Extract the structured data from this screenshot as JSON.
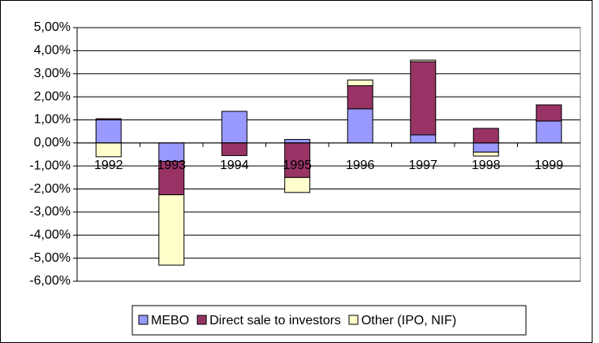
{
  "chart_data": {
    "type": "bar",
    "stacked": true,
    "grid": true,
    "legend": "bottom",
    "categories": [
      "1992",
      "1993",
      "1994",
      "1995",
      "1996",
      "1997",
      "1998",
      "1999"
    ],
    "series": [
      {
        "name": "MEBO",
        "color": "#9999ff",
        "values": [
          1.0,
          -0.8,
          1.37,
          0.15,
          1.48,
          0.35,
          -0.4,
          0.95
        ]
      },
      {
        "name": "Direct sale to investors",
        "color": "#993366",
        "values": [
          0.05,
          -1.45,
          -0.55,
          -1.5,
          1.0,
          3.17,
          0.63,
          0.7
        ]
      },
      {
        "name": "Other (IPO, NIF)",
        "color": "#ffffcc",
        "values": [
          -0.6,
          -3.05,
          0,
          -0.65,
          0.25,
          0.07,
          -0.17,
          0
        ]
      }
    ],
    "ylim": [
      -6,
      5
    ],
    "yticks": [
      {
        "value": -6,
        "label": "-6,00%"
      },
      {
        "value": -5,
        "label": "-5,00%"
      },
      {
        "value": -4,
        "label": "-4,00%"
      },
      {
        "value": -3,
        "label": "-3,00%"
      },
      {
        "value": -2,
        "label": "-2,00%"
      },
      {
        "value": -1,
        "label": "-1,00%"
      },
      {
        "value": 0,
        "label": "0,00%"
      },
      {
        "value": 1,
        "label": "1,00%"
      },
      {
        "value": 2,
        "label": "2,00%"
      },
      {
        "value": 3,
        "label": "3,00%"
      },
      {
        "value": 4,
        "label": "4,00%"
      },
      {
        "value": 5,
        "label": "5,00%"
      }
    ]
  }
}
